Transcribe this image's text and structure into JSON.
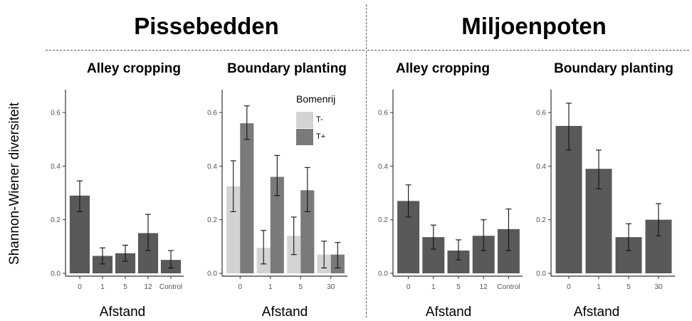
{
  "groups": [
    {
      "title": "Pissebedden"
    },
    {
      "title": "Miljoenpoten"
    }
  ],
  "ylabel": "Shannon-Wiener diversiteit",
  "legend": {
    "title": "Bomenrij",
    "items": [
      {
        "label": "T-",
        "color": "#d3d3d3"
      },
      {
        "label": "T+",
        "color": "#7a7a7a"
      }
    ]
  },
  "colors": {
    "single_bar": "#595959",
    "t_minus": "#d3d3d3",
    "t_plus": "#7a7a7a"
  },
  "chart_data": [
    {
      "type": "bar",
      "group": "Pissebedden",
      "title": "Alley cropping",
      "xlabel": "Afstand",
      "ylabel": "Shannon-Wiener diversiteit",
      "ylim": [
        0,
        0.68
      ],
      "yticks": [
        0.0,
        0.2,
        0.4,
        0.6
      ],
      "categories": [
        "0",
        "1",
        "5",
        "12",
        "Control"
      ],
      "series": [
        {
          "values": [
            0.29,
            0.065,
            0.075,
            0.15,
            0.05
          ],
          "errors": [
            [
              0.23,
              0.345
            ],
            [
              0.035,
              0.095
            ],
            [
              0.045,
              0.105
            ],
            [
              0.085,
              0.22
            ],
            [
              0.02,
              0.085
            ]
          ]
        }
      ]
    },
    {
      "type": "bar",
      "group": "Pissebedden",
      "title": "Boundary planting",
      "xlabel": "Afstand",
      "ylim": [
        0,
        0.68
      ],
      "yticks": [
        0.0,
        0.2,
        0.4,
        0.6
      ],
      "categories": [
        "0",
        "1",
        "5",
        "30"
      ],
      "legend_title": "Bomenrij",
      "series": [
        {
          "name": "T-",
          "values": [
            0.325,
            0.095,
            0.14,
            0.07
          ],
          "errors": [
            [
              0.23,
              0.42
            ],
            [
              0.035,
              0.16
            ],
            [
              0.07,
              0.21
            ],
            [
              0.02,
              0.12
            ]
          ]
        },
        {
          "name": "T+",
          "values": [
            0.56,
            0.36,
            0.31,
            0.07
          ],
          "errors": [
            [
              0.5,
              0.625
            ],
            [
              0.29,
              0.44
            ],
            [
              0.23,
              0.395
            ],
            [
              0.02,
              0.115
            ]
          ]
        }
      ]
    },
    {
      "type": "bar",
      "group": "Miljoenpoten",
      "title": "Alley cropping",
      "xlabel": "Afstand",
      "ylim": [
        0,
        0.68
      ],
      "yticks": [
        0.0,
        0.2,
        0.4,
        0.6
      ],
      "categories": [
        "0",
        "1",
        "5",
        "12",
        "Control"
      ],
      "series": [
        {
          "values": [
            0.27,
            0.135,
            0.085,
            0.14,
            0.165
          ],
          "errors": [
            [
              0.21,
              0.33
            ],
            [
              0.09,
              0.18
            ],
            [
              0.05,
              0.125
            ],
            [
              0.085,
              0.2
            ],
            [
              0.085,
              0.24
            ]
          ]
        }
      ]
    },
    {
      "type": "bar",
      "group": "Miljoenpoten",
      "title": "Boundary planting",
      "xlabel": "Afstand",
      "ylim": [
        0,
        0.68
      ],
      "yticks": [
        0.0,
        0.2,
        0.4,
        0.6
      ],
      "categories": [
        "0",
        "1",
        "5",
        "30"
      ],
      "series": [
        {
          "values": [
            0.55,
            0.39,
            0.135,
            0.2
          ],
          "errors": [
            [
              0.46,
              0.635
            ],
            [
              0.315,
              0.46
            ],
            [
              0.085,
              0.185
            ],
            [
              0.14,
              0.26
            ]
          ]
        }
      ]
    }
  ]
}
